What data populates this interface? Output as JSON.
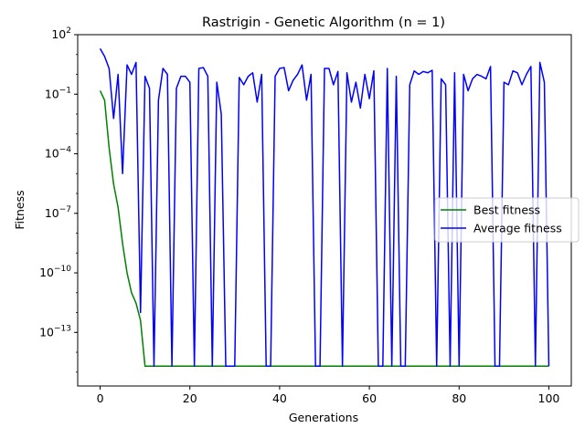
{
  "chart_data": {
    "type": "line",
    "title": "Rastrigin - Genetic Algorithm (n = 1)",
    "xlabel": "Generations",
    "ylabel": "Fitness",
    "xlim": [
      -5,
      105
    ],
    "ylim": [
      2e-16,
      100
    ],
    "yscale": "log",
    "xticks": [
      0,
      20,
      40,
      60,
      80,
      100
    ],
    "yticks": [
      {
        "value": 100,
        "label": "10^2"
      },
      {
        "value": 0.1,
        "label": "10^-1"
      },
      {
        "value": 0.0001,
        "label": "10^-4"
      },
      {
        "value": 1e-07,
        "label": "10^-7"
      },
      {
        "value": 1e-10,
        "label": "10^-10"
      },
      {
        "value": 1e-13,
        "label": "10^-13"
      }
    ],
    "grid": false,
    "legend_position": "center-right",
    "series": [
      {
        "name": "Best fitness",
        "color": "#008000",
        "x": [
          0,
          1,
          2,
          3,
          4,
          5,
          6,
          7,
          8,
          9,
          10,
          11,
          12,
          13,
          14,
          15,
          16,
          17,
          18,
          19,
          20,
          21,
          22,
          23,
          24,
          25,
          26,
          27,
          28,
          29,
          30,
          31,
          32,
          33,
          34,
          35,
          36,
          37,
          38,
          39,
          40,
          41,
          42,
          43,
          44,
          45,
          46,
          47,
          48,
          49,
          50,
          51,
          52,
          53,
          54,
          55,
          56,
          57,
          58,
          59,
          60,
          61,
          62,
          63,
          64,
          65,
          66,
          67,
          68,
          69,
          70,
          71,
          72,
          73,
          74,
          75,
          76,
          77,
          78,
          79,
          80,
          81,
          82,
          83,
          84,
          85,
          86,
          87,
          88,
          89,
          90,
          91,
          92,
          93,
          94,
          95,
          96,
          97,
          98,
          99,
          100
        ],
        "y": [
          0.15,
          0.05,
          0.0002,
          3e-06,
          2e-07,
          3e-09,
          1e-10,
          1e-11,
          3e-12,
          4e-13,
          2e-15,
          2e-15,
          2e-15,
          2e-15,
          2e-15,
          2e-15,
          2e-15,
          2e-15,
          2e-15,
          2e-15,
          2e-15,
          2e-15,
          2e-15,
          2e-15,
          2e-15,
          2e-15,
          2e-15,
          2e-15,
          2e-15,
          2e-15,
          2e-15,
          2e-15,
          2e-15,
          2e-15,
          2e-15,
          2e-15,
          2e-15,
          2e-15,
          2e-15,
          2e-15,
          2e-15,
          2e-15,
          2e-15,
          2e-15,
          2e-15,
          2e-15,
          2e-15,
          2e-15,
          2e-15,
          2e-15,
          2e-15,
          2e-15,
          2e-15,
          2e-15,
          2e-15,
          2e-15,
          2e-15,
          2e-15,
          2e-15,
          2e-15,
          2e-15,
          2e-15,
          2e-15,
          2e-15,
          2e-15,
          2e-15,
          2e-15,
          2e-15,
          2e-15,
          2e-15,
          2e-15,
          2e-15,
          2e-15,
          2e-15,
          2e-15,
          2e-15,
          2e-15,
          2e-15,
          2e-15,
          2e-15,
          2e-15,
          2e-15,
          2e-15,
          2e-15,
          2e-15,
          2e-15,
          2e-15,
          2e-15,
          2e-15,
          2e-15,
          2e-15,
          2e-15,
          2e-15,
          2e-15,
          2e-15,
          2e-15,
          2e-15,
          2e-15,
          2e-15,
          2e-15,
          2e-15
        ]
      },
      {
        "name": "Average fitness",
        "color": "#0000ff",
        "x": [
          0,
          1,
          2,
          3,
          4,
          5,
          6,
          7,
          8,
          9,
          10,
          11,
          12,
          13,
          14,
          15,
          16,
          17,
          18,
          19,
          20,
          21,
          22,
          23,
          24,
          25,
          26,
          27,
          28,
          29,
          30,
          31,
          32,
          33,
          34,
          35,
          36,
          37,
          38,
          39,
          40,
          41,
          42,
          43,
          44,
          45,
          46,
          47,
          48,
          49,
          50,
          51,
          52,
          53,
          54,
          55,
          56,
          57,
          58,
          59,
          60,
          61,
          62,
          63,
          64,
          65,
          66,
          67,
          68,
          69,
          70,
          71,
          72,
          73,
          74,
          75,
          76,
          77,
          78,
          79,
          80,
          81,
          82,
          83,
          84,
          85,
          86,
          87,
          88,
          89,
          90,
          91,
          92,
          93,
          94,
          95,
          96,
          97,
          98,
          99,
          100
        ],
        "y": [
          20,
          8,
          2,
          0.006,
          1,
          1e-05,
          3,
          1,
          4,
          1e-12,
          0.8,
          0.2,
          2e-15,
          0.05,
          2,
          1,
          2e-15,
          0.2,
          0.8,
          0.8,
          0.4,
          2e-15,
          2,
          2.2,
          0.8,
          2e-15,
          0.4,
          0.01,
          2e-15,
          2e-15,
          2e-15,
          0.7,
          0.3,
          0.8,
          1.2,
          0.04,
          1,
          2e-15,
          2e-15,
          0.8,
          2,
          2.2,
          0.15,
          0.5,
          1,
          3,
          0.05,
          1,
          2e-15,
          2e-15,
          2,
          2,
          0.3,
          1.4,
          2e-15,
          1.2,
          0.04,
          0.4,
          0.02,
          1,
          0.06,
          1.5,
          2e-15,
          2e-15,
          2,
          2e-15,
          0.8,
          2e-15,
          2e-15,
          0.3,
          1.5,
          1,
          1.4,
          1.2,
          1.6,
          2e-15,
          0.6,
          0.3,
          2e-15,
          1.2,
          2e-15,
          1,
          0.15,
          0.6,
          1,
          0.8,
          0.6,
          2.5,
          2e-15,
          2e-15,
          0.4,
          0.3,
          1.5,
          1.2,
          0.3,
          1,
          2.5,
          2e-15,
          4,
          0.4,
          2e-15
        ]
      }
    ]
  }
}
